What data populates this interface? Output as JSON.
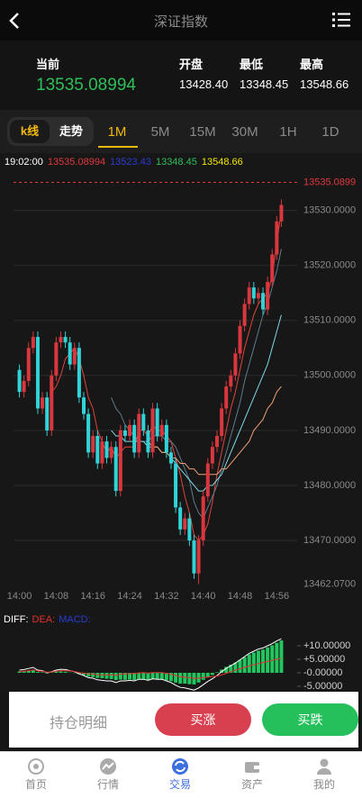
{
  "header": {
    "title": "深证指数"
  },
  "quote": {
    "current_label": "当前",
    "current": "13535.08994",
    "open_label": "开盘",
    "open": "13428.40",
    "low_label": "最低",
    "low": "13348.45",
    "high_label": "最高",
    "high": "13548.66"
  },
  "tabs": {
    "modes": [
      "k线",
      "走势"
    ],
    "periods": [
      "1M",
      "5M",
      "15M",
      "30M",
      "1H",
      "1D"
    ]
  },
  "chart_data": [
    {
      "type": "candlestick",
      "legend": [
        {
          "text": "19:02:00",
          "color": "#ffffff"
        },
        {
          "text": "13535.08994",
          "color": "#e0393e"
        },
        {
          "text": "13523.43",
          "color": "#2b3bd1"
        },
        {
          "text": "13348.45",
          "color": "#2fbf5a"
        },
        {
          "text": "13548.66",
          "color": "#f2e600"
        }
      ],
      "categories": [
        "14:00",
        null,
        null,
        null,
        null,
        null,
        null,
        null,
        "14:08",
        null,
        null,
        null,
        null,
        null,
        null,
        null,
        "14:16",
        null,
        null,
        null,
        null,
        null,
        null,
        null,
        "14:24",
        null,
        null,
        null,
        null,
        null,
        null,
        null,
        "14:32",
        null,
        null,
        null,
        null,
        null,
        null,
        null,
        "14:40",
        null,
        null,
        null,
        null,
        null,
        null,
        null,
        "14:48",
        null,
        null,
        null,
        null,
        null,
        null,
        null,
        "14:56",
        null
      ],
      "open": [
        13501,
        13497,
        13499,
        13505,
        13507,
        13494,
        13496,
        13490,
        13500,
        13506,
        13507,
        13506,
        13502,
        13505,
        13496,
        13493,
        13486,
        13489,
        13484,
        13488,
        13485,
        13487,
        13479,
        13490,
        13489,
        13491,
        13486,
        13493,
        13490,
        13486,
        13494,
        13489,
        13491,
        13486,
        13484,
        13476,
        13472,
        13474,
        13470,
        13464,
        13470,
        13478,
        13484,
        13487,
        13489,
        13494,
        13498,
        13500,
        13504,
        13509,
        13513,
        13516,
        13514,
        13515,
        13512,
        13517,
        13522,
        13528
      ],
      "high": [
        13502,
        13500,
        13506,
        13508,
        13508,
        13497,
        13497,
        13501,
        13507,
        13508,
        13508,
        13507,
        13506,
        13506,
        13497,
        13494,
        13490,
        13490,
        13489,
        13489,
        13488,
        13488,
        13491,
        13491,
        13492,
        13492,
        13494,
        13494,
        13491,
        13495,
        13495,
        13492,
        13492,
        13487,
        13485,
        13477,
        13475,
        13475,
        13471,
        13471,
        13479,
        13485,
        13488,
        13490,
        13495,
        13499,
        13501,
        13505,
        13510,
        13514,
        13517,
        13517,
        13516,
        13516,
        13518,
        13523,
        13529,
        13532
      ],
      "low": [
        13496,
        13496,
        13498,
        13504,
        13493,
        13493,
        13489,
        13489,
        13499,
        13505,
        13505,
        13501,
        13501,
        13495,
        13492,
        13485,
        13485,
        13483,
        13483,
        13484,
        13484,
        13478,
        13478,
        13488,
        13488,
        13485,
        13485,
        13489,
        13485,
        13485,
        13488,
        13488,
        13485,
        13483,
        13475,
        13471,
        13471,
        13469,
        13463,
        13462.07,
        13469,
        13477,
        13483,
        13486,
        13488,
        13493,
        13497,
        13499,
        13503,
        13508,
        13512,
        13513,
        13513,
        13511,
        13511,
        13516,
        13521,
        13527
      ],
      "close": [
        13497,
        13499,
        13505,
        13507,
        13494,
        13496,
        13490,
        13500,
        13506,
        13507,
        13506,
        13502,
        13505,
        13496,
        13493,
        13486,
        13489,
        13484,
        13488,
        13485,
        13487,
        13479,
        13490,
        13489,
        13491,
        13486,
        13493,
        13490,
        13486,
        13494,
        13489,
        13491,
        13486,
        13484,
        13476,
        13472,
        13474,
        13470,
        13464,
        13470,
        13478,
        13484,
        13487,
        13489,
        13494,
        13498,
        13500,
        13504,
        13509,
        13513,
        13516,
        13514,
        13515,
        13512,
        13517,
        13522,
        13528,
        13531
      ],
      "up_color": "#d9363e",
      "down_color": "#2fd3d8",
      "series": [
        {
          "color": "#e0443c",
          "values": [
            null,
            null,
            null,
            null,
            null,
            null,
            null,
            13497,
            13498,
            13500,
            13503,
            13504,
            13505,
            13503,
            13500,
            13496,
            13494,
            13490,
            13488,
            13486,
            13487,
            13485,
            13486,
            13487,
            13487,
            13487,
            13490,
            13490,
            13489,
            13491,
            13490,
            13490,
            13489,
            13488,
            13485,
            13482,
            13478,
            13475,
            13471,
            13470,
            13471,
            13473,
            13477,
            13482,
            13486,
            13490,
            13494,
            13497,
            13501,
            13505,
            13508,
            13511,
            13513,
            13514,
            13515,
            13518,
            13524,
            13530
          ]
        },
        {
          "color": "#5d7c8c",
          "values": [
            null,
            null,
            null,
            null,
            null,
            null,
            null,
            null,
            null,
            null,
            null,
            null,
            null,
            null,
            null,
            null,
            null,
            null,
            null,
            null,
            13496,
            13494,
            13493,
            13491,
            13490,
            13489,
            13488,
            13488,
            13488,
            13489,
            13489,
            13489,
            13488,
            13488,
            13487,
            13485,
            13483,
            13481,
            13477,
            13475,
            13474,
            13476,
            13478,
            13480,
            13483,
            13486,
            13489,
            13492,
            13495,
            13499,
            13502,
            13505,
            13508,
            13511,
            13513,
            13516,
            13519,
            13523
          ]
        },
        {
          "color": "#7fd8e8",
          "values": [
            null,
            null,
            null,
            null,
            null,
            null,
            null,
            null,
            null,
            null,
            null,
            null,
            null,
            null,
            null,
            null,
            null,
            null,
            null,
            null,
            13490,
            13489,
            13489,
            13488,
            13488,
            13488,
            13488,
            13488,
            13487,
            13487,
            13487,
            13486,
            13486,
            13485,
            13484,
            13483,
            13482,
            13481,
            13480,
            13479,
            13479,
            13480,
            13480,
            13481,
            13482,
            13484,
            13486,
            13488,
            13490,
            13492,
            13494,
            13496,
            13498,
            13500,
            13502,
            13505,
            13508,
            13511
          ]
        },
        {
          "color": "#f0a070",
          "values": [
            null,
            null,
            null,
            null,
            null,
            null,
            null,
            null,
            null,
            null,
            null,
            null,
            null,
            null,
            null,
            null,
            null,
            null,
            null,
            null,
            null,
            null,
            null,
            null,
            null,
            null,
            null,
            null,
            13488,
            13487,
            13487,
            13486,
            13486,
            13485,
            13485,
            13484,
            13484,
            13483,
            13483,
            13482,
            13482,
            13482,
            13482,
            13482,
            13483,
            13483,
            13484,
            13485,
            13486,
            13487,
            13488,
            13490,
            13491,
            13492,
            13494,
            13495,
            13497,
            13498
          ]
        }
      ],
      "ylim": [
        13461,
        13536
      ],
      "yticks": [
        {
          "value": 13530,
          "label": "13530.0000"
        },
        {
          "value": 13520,
          "label": "13520.0000"
        },
        {
          "value": 13510,
          "label": "13510.0000"
        },
        {
          "value": 13500,
          "label": "13500.0000"
        },
        {
          "value": 13490,
          "label": "13490.0000"
        },
        {
          "value": 13480,
          "label": "13480.0000"
        },
        {
          "value": 13470,
          "label": "13470.0000"
        }
      ],
      "min_label": {
        "value": 13462.07,
        "label": "13462.0700"
      },
      "current": {
        "value": 13535.08994,
        "label": "13535.0899",
        "color": "#e0393e"
      },
      "grid": true
    },
    {
      "type": "macd",
      "series": [
        {
          "name": "DIFF:",
          "kind": "line",
          "color": "#ffffff",
          "legend_color": "#ffffff",
          "values": [
            1,
            1.2,
            1.6,
            2,
            1,
            0.8,
            0,
            0.4,
            1,
            1.3,
            1.2,
            0.8,
            0.4,
            -0.4,
            -1,
            -1.8,
            -2,
            -2.6,
            -2.8,
            -3,
            -3,
            -3.6,
            -3,
            -3,
            -2.8,
            -3,
            -2.4,
            -2.4,
            -2.8,
            -2.2,
            -2.4,
            -2.4,
            -3,
            -3.6,
            -4.6,
            -5.4,
            -5.6,
            -6,
            -6.4,
            -5.6,
            -4.4,
            -3.2,
            -2.2,
            -1,
            0.4,
            1.6,
            2.6,
            3.6,
            4.8,
            6,
            7.2,
            8,
            8.8,
            9.2,
            10,
            10.8,
            11.8,
            12.6
          ]
        },
        {
          "name": "DEA:",
          "kind": "line",
          "color": "#e03030",
          "legend_color": "#e03030",
          "values": [
            0.5,
            0.6,
            0.8,
            1.1,
            0.7,
            0.6,
            0.2,
            0.3,
            0.6,
            0.8,
            0.8,
            0.7,
            0.5,
            0.1,
            -0.1,
            -0.4,
            -0.4,
            -0.7,
            -0.8,
            -0.8,
            -0.7,
            -0.9,
            -0.5,
            -0.4,
            -0.3,
            -0.3,
            0,
            0.1,
            -0.1,
            0.1,
            0.1,
            0.1,
            -0.2,
            -0.5,
            -1,
            -1.4,
            -1.6,
            -1.8,
            -2.1,
            -2,
            -1.8,
            -1.6,
            -1.4,
            -1.2,
            -0.8,
            -0.2,
            0.4,
            1,
            1.5,
            2,
            2.5,
            3,
            3.4,
            3.8,
            4.2,
            4.6,
            5,
            5.4
          ]
        },
        {
          "name": "MACD:",
          "kind": "bar",
          "color": "#22c55e",
          "legend_color": "#2b3bd1",
          "values": [
            0.5,
            0.6,
            0.8,
            0.9,
            0.3,
            0.2,
            -0.2,
            0.1,
            0.4,
            0.5,
            0.4,
            0.1,
            -0.1,
            -0.5,
            -0.9,
            -1.4,
            -1.6,
            -1.9,
            -2,
            -2.2,
            -2.3,
            -2.7,
            -2.5,
            -2.6,
            -2.5,
            -2.7,
            -2.4,
            -2.5,
            -2.7,
            -2.3,
            -2.5,
            -2.5,
            -2.8,
            -3.1,
            -3.6,
            -4,
            -4,
            -4.2,
            -4.3,
            -3.6,
            -2.6,
            -1.6,
            -0.8,
            0.2,
            1.2,
            2.2,
            3,
            3.8,
            4.8,
            5.8,
            6.8,
            7.5,
            8.2,
            8.6,
            9.4,
            10.2,
            11.1,
            12
          ]
        }
      ],
      "ylim": [
        -8,
        15
      ],
      "yticks": [
        {
          "value": 10,
          "label": "+10.00000"
        },
        {
          "value": 5,
          "label": "+5.00000"
        },
        {
          "value": 0,
          "label": "-0.00000"
        },
        {
          "value": -5,
          "label": "-5.00000"
        }
      ]
    }
  ],
  "trade": {
    "positions": "持仓明细",
    "buy_up": "买涨",
    "buy_down": "买跌"
  },
  "nav": [
    "首页",
    "行情",
    "交易",
    "资产",
    "我的"
  ]
}
